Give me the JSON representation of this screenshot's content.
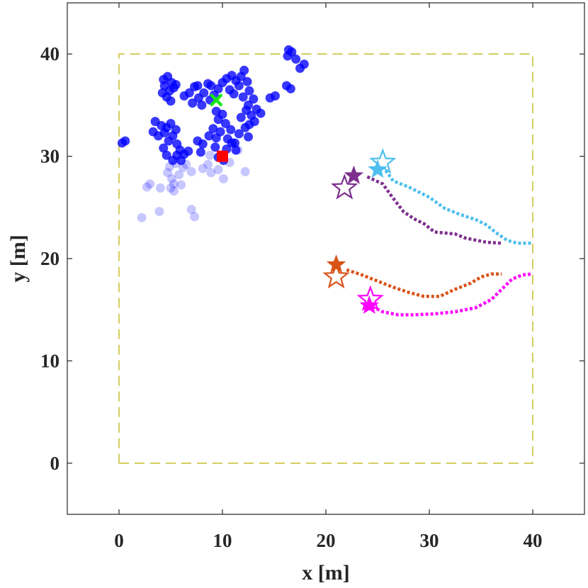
{
  "chart_data": {
    "type": "scatter",
    "xlabel": "x [m]",
    "ylabel": "y [m]",
    "xlim": [
      -5,
      45
    ],
    "ylim": [
      -5,
      45
    ],
    "xticks": [
      0,
      10,
      20,
      30,
      40
    ],
    "yticks": [
      0,
      10,
      20,
      30,
      40
    ],
    "grid": false,
    "boundary": {
      "x": [
        0,
        40,
        40,
        0,
        0
      ],
      "y": [
        0,
        0,
        40,
        40,
        0
      ],
      "color": "#c9c23a",
      "style": "dashed"
    },
    "particles": {
      "color": "#0000ff",
      "points": [
        [
          4.3,
          37.5
        ],
        [
          4.7,
          37.8
        ],
        [
          5.1,
          37.2
        ],
        [
          4.4,
          36.9
        ],
        [
          4.9,
          36.4
        ],
        [
          5.3,
          36.7
        ],
        [
          4.6,
          35.8
        ],
        [
          5.0,
          35.4
        ],
        [
          4.2,
          36.2
        ],
        [
          5.5,
          37.0
        ],
        [
          6.8,
          36.2
        ],
        [
          7.3,
          36.8
        ],
        [
          7.7,
          35.7
        ],
        [
          8.2,
          36.2
        ],
        [
          8.6,
          37.1
        ],
        [
          7.1,
          35.2
        ],
        [
          8.0,
          35.0
        ],
        [
          8.8,
          35.5
        ],
        [
          9.2,
          36.0
        ],
        [
          9.6,
          36.6
        ],
        [
          10.0,
          37.2
        ],
        [
          10.4,
          37.6
        ],
        [
          10.9,
          37.9
        ],
        [
          11.3,
          37.4
        ],
        [
          11.8,
          37.8
        ],
        [
          12.1,
          38.4
        ],
        [
          11.6,
          36.9
        ],
        [
          12.4,
          37.3
        ],
        [
          10.7,
          36.5
        ],
        [
          11.1,
          36.1
        ],
        [
          12.0,
          35.8
        ],
        [
          12.6,
          36.4
        ],
        [
          13.0,
          35.6
        ],
        [
          12.5,
          35.0
        ],
        [
          13.3,
          34.6
        ],
        [
          13.7,
          34.2
        ],
        [
          12.8,
          34.0
        ],
        [
          12.3,
          34.5
        ],
        [
          11.8,
          33.8
        ],
        [
          12.6,
          33.1
        ],
        [
          13.1,
          33.4
        ],
        [
          12.2,
          32.8
        ],
        [
          11.6,
          32.2
        ],
        [
          12.5,
          31.9
        ],
        [
          11.2,
          31.3
        ],
        [
          10.5,
          31.7
        ],
        [
          10.8,
          32.6
        ],
        [
          10.3,
          33.2
        ],
        [
          10.0,
          34.1
        ],
        [
          9.6,
          33.6
        ],
        [
          9.8,
          32.4
        ],
        [
          9.4,
          31.8
        ],
        [
          9.1,
          32.7
        ],
        [
          9.4,
          34.4
        ],
        [
          8.9,
          36.9
        ],
        [
          6.3,
          35.9
        ],
        [
          7.6,
          36.9
        ],
        [
          14.6,
          35.7
        ],
        [
          15.1,
          35.9
        ],
        [
          16.2,
          36.9
        ],
        [
          16.6,
          36.6
        ],
        [
          16.3,
          39.8
        ],
        [
          16.7,
          40.2
        ],
        [
          17.1,
          39.5
        ],
        [
          17.5,
          38.6
        ],
        [
          17.9,
          39.0
        ],
        [
          16.4,
          40.4
        ],
        [
          3.5,
          33.4
        ],
        [
          4.1,
          33.0
        ],
        [
          4.6,
          32.8
        ],
        [
          5.0,
          33.2
        ],
        [
          4.4,
          32.3
        ],
        [
          3.8,
          32.0
        ],
        [
          3.3,
          32.4
        ],
        [
          5.2,
          32.0
        ],
        [
          5.5,
          32.6
        ],
        [
          4.8,
          31.5
        ],
        [
          4.3,
          30.8
        ],
        [
          5.6,
          31.2
        ],
        [
          5.9,
          30.6
        ],
        [
          6.3,
          30.2
        ],
        [
          6.0,
          29.6
        ],
        [
          5.6,
          30.1
        ],
        [
          6.7,
          30.5
        ],
        [
          5.2,
          29.6
        ],
        [
          4.6,
          30.1
        ],
        [
          7.6,
          31.5
        ],
        [
          8.1,
          31.2
        ],
        [
          8.7,
          32.0
        ],
        [
          7.9,
          30.4
        ],
        [
          9.3,
          30.9
        ],
        [
          9.6,
          29.9
        ],
        [
          10.4,
          30.7
        ],
        [
          10.9,
          31.3
        ],
        [
          11.3,
          30.6
        ],
        [
          10.1,
          29.6
        ],
        [
          0.3,
          31.3
        ],
        [
          0.6,
          31.5
        ]
      ],
      "faint_points": [
        [
          4.7,
          28.4
        ],
        [
          5.1,
          27.8
        ],
        [
          5.8,
          28.2
        ],
        [
          5.3,
          27.3
        ],
        [
          5.0,
          26.9
        ],
        [
          6.2,
          28.9
        ],
        [
          4.9,
          29.0
        ],
        [
          5.5,
          29.3
        ],
        [
          7.0,
          28.5
        ],
        [
          8.1,
          28.8
        ],
        [
          8.6,
          29.2
        ],
        [
          8.9,
          28.4
        ],
        [
          9.6,
          28.7
        ],
        [
          10.1,
          27.8
        ],
        [
          10.7,
          29.4
        ],
        [
          12.2,
          28.5
        ],
        [
          3.0,
          27.3
        ],
        [
          2.7,
          27.0
        ],
        [
          4.0,
          26.9
        ],
        [
          5.3,
          26.6
        ],
        [
          6.0,
          27.2
        ],
        [
          7.0,
          24.8
        ],
        [
          7.3,
          24.1
        ],
        [
          3.9,
          24.6
        ],
        [
          2.2,
          24.0
        ],
        [
          11.5,
          30.6
        ],
        [
          8.8,
          30.1
        ],
        [
          6.5,
          29.2
        ]
      ]
    },
    "markers": {
      "cross": {
        "x": 9.4,
        "y": 35.5,
        "color": "#19e619"
      },
      "square": {
        "x": 10.0,
        "y": 30.0,
        "color": "#ff0000"
      }
    },
    "series": [
      {
        "color": "#4dbeee",
        "x": [
          25.5,
          26.5,
          28.0,
          30.0,
          31.5,
          33.0,
          34.5,
          35.5,
          36.5,
          37.5,
          38.5,
          40.0
        ],
        "y": [
          29.0,
          27.6,
          27.0,
          26.0,
          24.9,
          24.3,
          23.8,
          23.3,
          22.5,
          21.8,
          21.5,
          21.5
        ],
        "start": [
          25.5,
          29.4
        ],
        "end": [
          25.0,
          28.7
        ]
      },
      {
        "color": "#7e2f8e",
        "x": [
          24.0,
          25.5,
          26.5,
          27.5,
          28.5,
          29.5,
          30.5,
          31.5,
          32.5,
          33.5,
          35.5,
          37.0
        ],
        "y": [
          28.0,
          27.3,
          25.9,
          24.6,
          23.9,
          23.4,
          22.6,
          22.5,
          22.4,
          22.0,
          21.6,
          21.5
        ],
        "start": [
          21.8,
          26.9
        ],
        "end": [
          22.7,
          28.1
        ]
      },
      {
        "color": "#d95319",
        "x": [
          22.0,
          23.5,
          25.0,
          26.5,
          28.0,
          29.5,
          31.0,
          32.5,
          34.0,
          35.0,
          36.0,
          37.0
        ],
        "y": [
          18.9,
          18.4,
          17.8,
          17.2,
          16.7,
          16.3,
          16.3,
          17.0,
          17.6,
          18.2,
          18.5,
          18.5
        ],
        "start": [
          21.0,
          18.2
        ],
        "end": [
          21.0,
          19.4
        ]
      },
      {
        "color": "#ff00ff",
        "x": [
          24.5,
          25.5,
          27.0,
          28.5,
          30.5,
          32.5,
          34.5,
          36.0,
          37.0,
          38.0,
          39.0,
          40.0
        ],
        "y": [
          15.3,
          14.8,
          14.5,
          14.5,
          14.6,
          14.8,
          15.2,
          16.0,
          17.0,
          18.0,
          18.4,
          18.5
        ],
        "start": [
          24.3,
          16.0
        ],
        "end": [
          24.2,
          15.4
        ]
      }
    ]
  }
}
